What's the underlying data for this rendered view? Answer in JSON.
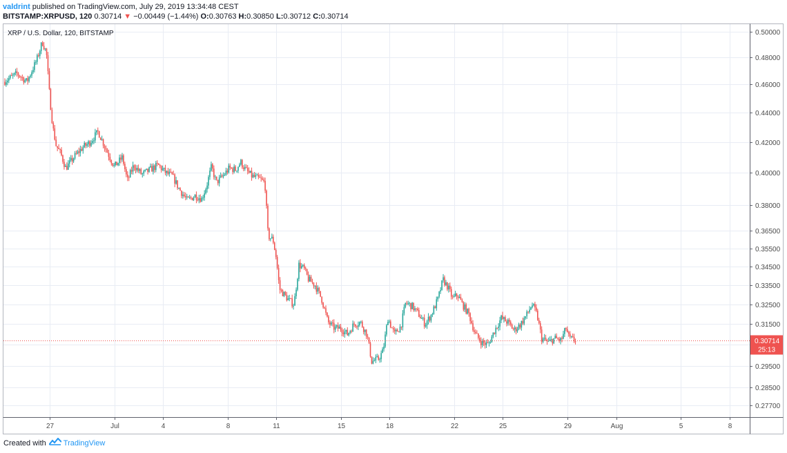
{
  "header": {
    "author": "valdrint",
    "published_text": "published on TradingView.com, July 29, 2019 13:34:48 CEST",
    "symbol": "BITSTAMP:XRPUSD, 120",
    "last": "0.30714",
    "arrow": "▼",
    "change": "−0.00449 (−1.44%)",
    "o_label": "O:",
    "o_value": "0.30763",
    "h_label": "H:",
    "h_value": "0.30850",
    "l_label": "L:",
    "l_value": "0.30712",
    "c_label": "C:",
    "c_value": "0.30714"
  },
  "footer": {
    "created_with": "Created with",
    "brand": "TradingView"
  },
  "colors": {
    "up": "#26a69a",
    "down": "#ef5350",
    "grid": "#e8ecf4",
    "axis": "#5d606b",
    "price_line": "#ef5350",
    "brand": "#2196f3"
  },
  "chart_data": {
    "type": "candlestick",
    "title": "XRP / U.S. Dollar, 120, BITSTAMP",
    "xlabel": "",
    "ylabel": "",
    "y_scale": "log",
    "ylim": [
      0.272,
      0.506
    ],
    "grid": true,
    "y_ticks": [
      "0.50000",
      "0.48000",
      "0.46000",
      "0.44000",
      "0.42000",
      "0.40000",
      "0.38000",
      "0.36500",
      "0.35500",
      "0.34500",
      "0.33500",
      "0.32500",
      "0.31500",
      "0.30500",
      "0.29500",
      "0.28500",
      "0.27700"
    ],
    "x_ticks": [
      {
        "label": "27",
        "day": 27.0
      },
      {
        "label": "Jul",
        "day": 31.0
      },
      {
        "label": "4",
        "day": 34.0
      },
      {
        "label": "8",
        "day": 38.0
      },
      {
        "label": "11",
        "day": 41.0
      },
      {
        "label": "15",
        "day": 45.0
      },
      {
        "label": "18",
        "day": 48.0
      },
      {
        "label": "22",
        "day": 52.0
      },
      {
        "label": "25",
        "day": 55.0
      },
      {
        "label": "29",
        "day": 59.0
      },
      {
        "label": "Aug",
        "day": 62.0
      },
      {
        "label": "5",
        "day": 66.0
      },
      {
        "label": "8",
        "day": 69.0
      }
    ],
    "xlim": [
      24.15,
      70.25
    ],
    "last_price": {
      "value": 0.30714,
      "label": "0.30714",
      "countdown": "25:13"
    },
    "path": [
      [
        24.15,
        0.462
      ],
      [
        25.0,
        0.468
      ],
      [
        25.6,
        0.462
      ],
      [
        26.2,
        0.478
      ],
      [
        26.55,
        0.492
      ],
      [
        26.8,
        0.484
      ],
      [
        27.0,
        0.452
      ],
      [
        27.2,
        0.43
      ],
      [
        27.4,
        0.418
      ],
      [
        27.7,
        0.412
      ],
      [
        28.0,
        0.403
      ],
      [
        28.5,
        0.41
      ],
      [
        29.0,
        0.416
      ],
      [
        29.5,
        0.42
      ],
      [
        30.0,
        0.427
      ],
      [
        30.5,
        0.415
      ],
      [
        31.0,
        0.404
      ],
      [
        31.5,
        0.41
      ],
      [
        31.8,
        0.395
      ],
      [
        32.2,
        0.405
      ],
      [
        32.7,
        0.399
      ],
      [
        33.2,
        0.402
      ],
      [
        33.7,
        0.405
      ],
      [
        34.2,
        0.4
      ],
      [
        34.6,
        0.398
      ],
      [
        35.0,
        0.39
      ],
      [
        35.5,
        0.383
      ],
      [
        36.0,
        0.386
      ],
      [
        36.4,
        0.384
      ],
      [
        36.7,
        0.392
      ],
      [
        37.0,
        0.404
      ],
      [
        37.3,
        0.394
      ],
      [
        37.7,
        0.398
      ],
      [
        38.1,
        0.403
      ],
      [
        38.5,
        0.402
      ],
      [
        38.8,
        0.407
      ],
      [
        39.1,
        0.402
      ],
      [
        39.5,
        0.398
      ],
      [
        40.0,
        0.396
      ],
      [
        40.3,
        0.394
      ],
      [
        40.5,
        0.362
      ],
      [
        40.8,
        0.36
      ],
      [
        41.0,
        0.35
      ],
      [
        41.2,
        0.333
      ],
      [
        41.5,
        0.33
      ],
      [
        41.8,
        0.327
      ],
      [
        42.1,
        0.325
      ],
      [
        42.4,
        0.346
      ],
      [
        42.7,
        0.344
      ],
      [
        43.0,
        0.338
      ],
      [
        43.4,
        0.335
      ],
      [
        43.8,
        0.328
      ],
      [
        44.2,
        0.316
      ],
      [
        44.6,
        0.313
      ],
      [
        45.0,
        0.313
      ],
      [
        45.4,
        0.31
      ],
      [
        45.8,
        0.315
      ],
      [
        46.2,
        0.316
      ],
      [
        46.6,
        0.31
      ],
      [
        46.9,
        0.297
      ],
      [
        47.3,
        0.298
      ],
      [
        47.6,
        0.302
      ],
      [
        47.9,
        0.318
      ],
      [
        48.3,
        0.31
      ],
      [
        48.7,
        0.314
      ],
      [
        49.0,
        0.326
      ],
      [
        49.4,
        0.324
      ],
      [
        49.8,
        0.32
      ],
      [
        50.2,
        0.315
      ],
      [
        50.6,
        0.32
      ],
      [
        51.0,
        0.328
      ],
      [
        51.3,
        0.338
      ],
      [
        51.6,
        0.334
      ],
      [
        51.9,
        0.328
      ],
      [
        52.2,
        0.33
      ],
      [
        52.5,
        0.325
      ],
      [
        52.9,
        0.32
      ],
      [
        53.3,
        0.31
      ],
      [
        53.7,
        0.306
      ],
      [
        54.1,
        0.305
      ],
      [
        54.5,
        0.312
      ],
      [
        54.9,
        0.318
      ],
      [
        55.3,
        0.316
      ],
      [
        55.7,
        0.312
      ],
      [
        56.1,
        0.315
      ],
      [
        56.5,
        0.32
      ],
      [
        56.8,
        0.325
      ],
      [
        57.1,
        0.32
      ],
      [
        57.4,
        0.308
      ],
      [
        57.8,
        0.306
      ],
      [
        58.2,
        0.308
      ],
      [
        58.6,
        0.307
      ],
      [
        58.9,
        0.313
      ],
      [
        59.1,
        0.308
      ],
      [
        59.5,
        0.307
      ]
    ]
  }
}
